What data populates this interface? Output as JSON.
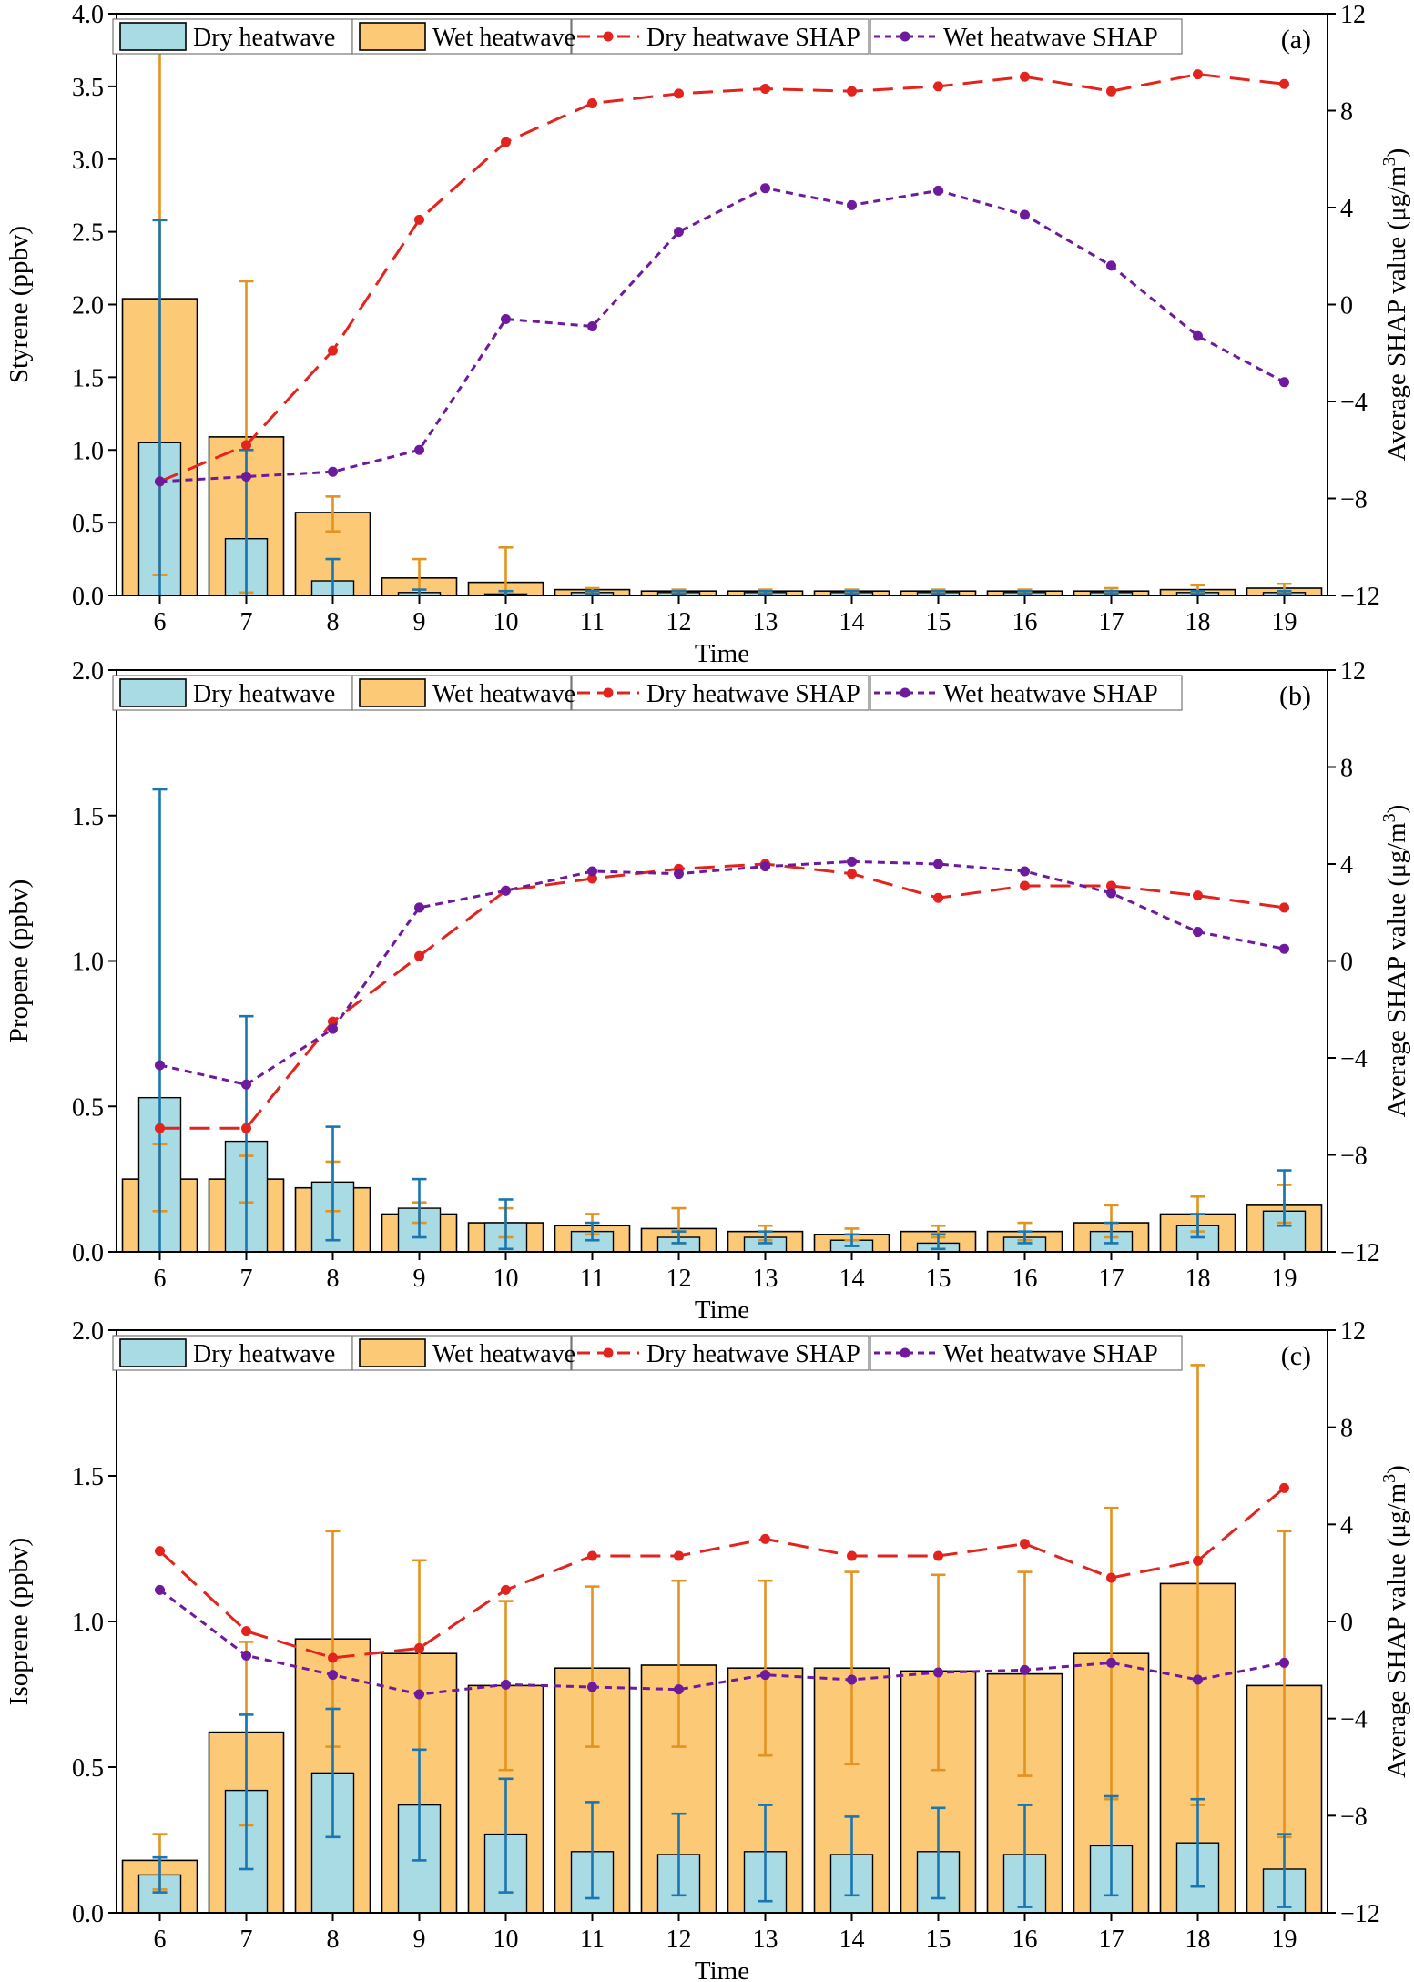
{
  "colors": {
    "dry_bar": "#a8dbe4",
    "wet_bar": "#fcc977",
    "dry_err": "#1a76b0",
    "wet_err": "#e3931f",
    "dry_shap": "#e3231d",
    "wet_shap": "#6d1a9c"
  },
  "legend": {
    "dry_bar": "Dry heatwave",
    "wet_bar": "Wet heatwave",
    "dry_shap": "Dry heatwave SHAP",
    "wet_shap": "Wet heatwave SHAP"
  },
  "chart_data": [
    {
      "type": "bar",
      "panel_label": "(a)",
      "xlabel": "Time",
      "ylabel": "Styrene (ppbv)",
      "y2label_main": "Average SHAP value (μg/m",
      "y2label_sup": "3",
      "y2label_end": ")",
      "categories": [
        "6",
        "7",
        "8",
        "9",
        "10",
        "11",
        "12",
        "13",
        "14",
        "15",
        "16",
        "17",
        "18",
        "19"
      ],
      "ylim": [
        0,
        4.0
      ],
      "yticks": [
        "0.0",
        "0.5",
        "1.0",
        "1.5",
        "2.0",
        "2.5",
        "3.0",
        "3.5",
        "4.0"
      ],
      "y2lim": [
        -12,
        12
      ],
      "y2ticks": [
        "-12",
        "-8",
        "-4",
        "0",
        "4",
        "8",
        "12"
      ],
      "series": [
        {
          "name": "Wet heatwave",
          "kind": "bar",
          "values": [
            2.04,
            1.09,
            0.57,
            0.12,
            0.09,
            0.04,
            0.03,
            0.03,
            0.03,
            0.03,
            0.03,
            0.03,
            0.04,
            0.05
          ],
          "err_low": [
            0.14,
            0.02,
            0.44,
            0.0,
            0.0,
            0.02,
            0.02,
            0.02,
            0.02,
            0.02,
            0.02,
            0.02,
            0.02,
            0.02
          ],
          "err_high": [
            3.95,
            2.16,
            0.68,
            0.25,
            0.33,
            0.05,
            0.04,
            0.04,
            0.04,
            0.04,
            0.04,
            0.05,
            0.07,
            0.08
          ]
        },
        {
          "name": "Dry heatwave",
          "kind": "bar",
          "values": [
            1.05,
            0.39,
            0.1,
            0.02,
            0.01,
            0.02,
            0.02,
            0.02,
            0.02,
            0.02,
            0.02,
            0.02,
            0.02,
            0.02
          ],
          "err_low": [
            0.0,
            0.0,
            0.0,
            0.0,
            0.0,
            0.01,
            0.01,
            0.01,
            0.01,
            0.01,
            0.01,
            0.01,
            0.01,
            0.01
          ],
          "err_high": [
            2.58,
            1.0,
            0.25,
            0.04,
            0.03,
            0.03,
            0.03,
            0.03,
            0.03,
            0.03,
            0.03,
            0.03,
            0.03,
            0.03
          ]
        },
        {
          "name": "Dry heatwave SHAP",
          "kind": "line",
          "values": [
            -7.3,
            -5.8,
            -1.9,
            3.5,
            6.7,
            8.3,
            8.7,
            8.9,
            8.8,
            9.0,
            9.4,
            8.8,
            9.5,
            9.1
          ]
        },
        {
          "name": "Wet heatwave SHAP",
          "kind": "line",
          "values": [
            -7.3,
            -7.1,
            -6.9,
            -6.0,
            -0.6,
            -0.9,
            3.0,
            4.8,
            4.1,
            4.7,
            3.7,
            1.6,
            -1.3,
            -3.2
          ]
        }
      ]
    },
    {
      "type": "bar",
      "panel_label": "(b)",
      "xlabel": "Time",
      "ylabel": "Propene (ppbv)",
      "y2label_main": "Average SHAP value (μg/m",
      "y2label_sup": "3",
      "y2label_end": ")",
      "categories": [
        "6",
        "7",
        "8",
        "9",
        "10",
        "11",
        "12",
        "13",
        "14",
        "15",
        "16",
        "17",
        "18",
        "19"
      ],
      "ylim": [
        0,
        2.0
      ],
      "yticks": [
        "0.0",
        "0.5",
        "1.0",
        "1.5",
        "2.0"
      ],
      "y2lim": [
        -12,
        12
      ],
      "y2ticks": [
        "-12",
        "-8",
        "-4",
        "0",
        "4",
        "8",
        "12"
      ],
      "series": [
        {
          "name": "Wet heatwave",
          "kind": "bar",
          "values": [
            0.25,
            0.25,
            0.22,
            0.13,
            0.1,
            0.09,
            0.08,
            0.07,
            0.06,
            0.07,
            0.07,
            0.1,
            0.13,
            0.16
          ],
          "err_low": [
            0.14,
            0.17,
            0.14,
            0.1,
            0.05,
            0.06,
            0.03,
            0.04,
            0.04,
            0.05,
            0.04,
            0.05,
            0.07,
            0.1
          ],
          "err_high": [
            0.37,
            0.33,
            0.31,
            0.17,
            0.15,
            0.13,
            0.15,
            0.09,
            0.08,
            0.09,
            0.1,
            0.16,
            0.19,
            0.23
          ]
        },
        {
          "name": "Dry heatwave",
          "kind": "bar",
          "values": [
            0.53,
            0.38,
            0.24,
            0.15,
            0.1,
            0.07,
            0.05,
            0.05,
            0.04,
            0.03,
            0.05,
            0.07,
            0.09,
            0.14
          ],
          "err_low": [
            0.0,
            0.0,
            0.04,
            0.05,
            0.01,
            0.04,
            0.03,
            0.03,
            0.02,
            0.01,
            0.03,
            0.03,
            0.05,
            0.09
          ],
          "err_high": [
            1.59,
            0.81,
            0.43,
            0.25,
            0.18,
            0.1,
            0.07,
            0.07,
            0.06,
            0.06,
            0.07,
            0.1,
            0.13,
            0.28
          ]
        },
        {
          "name": "Dry heatwave SHAP",
          "kind": "line",
          "values": [
            -6.9,
            -6.9,
            -2.5,
            0.2,
            2.9,
            3.4,
            3.8,
            4.0,
            3.6,
            2.6,
            3.1,
            3.1,
            2.7,
            2.2
          ]
        },
        {
          "name": "Wet heatwave SHAP",
          "kind": "line",
          "values": [
            -4.3,
            -5.1,
            -2.8,
            2.2,
            2.9,
            3.7,
            3.6,
            3.9,
            4.1,
            4.0,
            3.7,
            2.8,
            1.2,
            0.5
          ]
        }
      ]
    },
    {
      "type": "bar",
      "panel_label": "(c)",
      "xlabel": "Time",
      "ylabel": "Isoprene (ppbv)",
      "y2label_main": "Average SHAP value (μg/m",
      "y2label_sup": "3",
      "y2label_end": ")",
      "categories": [
        "6",
        "7",
        "8",
        "9",
        "10",
        "11",
        "12",
        "13",
        "14",
        "15",
        "16",
        "17",
        "18",
        "19"
      ],
      "ylim": [
        0,
        2.0
      ],
      "yticks": [
        "0.0",
        "0.5",
        "1.0",
        "1.5",
        "2.0"
      ],
      "y2lim": [
        -12,
        12
      ],
      "y2ticks": [
        "-12",
        "-8",
        "-4",
        "0",
        "4",
        "8",
        "12"
      ],
      "series": [
        {
          "name": "Wet heatwave",
          "kind": "bar",
          "values": [
            0.18,
            0.62,
            0.94,
            0.89,
            0.78,
            0.84,
            0.85,
            0.84,
            0.84,
            0.83,
            0.82,
            0.89,
            1.13,
            0.78
          ],
          "err_low": [
            0.08,
            0.3,
            0.57,
            0.56,
            0.49,
            0.57,
            0.57,
            0.54,
            0.51,
            0.49,
            0.47,
            0.39,
            0.37,
            0.26
          ],
          "err_high": [
            0.27,
            0.93,
            1.31,
            1.21,
            1.07,
            1.12,
            1.14,
            1.14,
            1.17,
            1.16,
            1.17,
            1.39,
            1.88,
            1.31
          ]
        },
        {
          "name": "Dry heatwave",
          "kind": "bar",
          "values": [
            0.13,
            0.42,
            0.48,
            0.37,
            0.27,
            0.21,
            0.2,
            0.21,
            0.2,
            0.21,
            0.2,
            0.23,
            0.24,
            0.15
          ],
          "err_low": [
            0.07,
            0.15,
            0.26,
            0.18,
            0.07,
            0.05,
            0.06,
            0.04,
            0.06,
            0.05,
            0.02,
            0.06,
            0.09,
            0.02
          ],
          "err_high": [
            0.19,
            0.68,
            0.7,
            0.56,
            0.46,
            0.38,
            0.34,
            0.37,
            0.33,
            0.36,
            0.37,
            0.4,
            0.39,
            0.27
          ]
        },
        {
          "name": "Dry heatwave SHAP",
          "kind": "line",
          "values": [
            2.9,
            -0.4,
            -1.5,
            -1.1,
            1.3,
            2.7,
            2.7,
            3.4,
            2.7,
            2.7,
            3.2,
            1.8,
            2.5,
            5.5
          ]
        },
        {
          "name": "Wet heatwave SHAP",
          "kind": "line",
          "values": [
            1.3,
            -1.4,
            -2.2,
            -3.0,
            -2.6,
            -2.7,
            -2.8,
            -2.2,
            -2.4,
            -2.1,
            -2.0,
            -1.7,
            -2.4,
            -1.7
          ]
        }
      ]
    }
  ]
}
